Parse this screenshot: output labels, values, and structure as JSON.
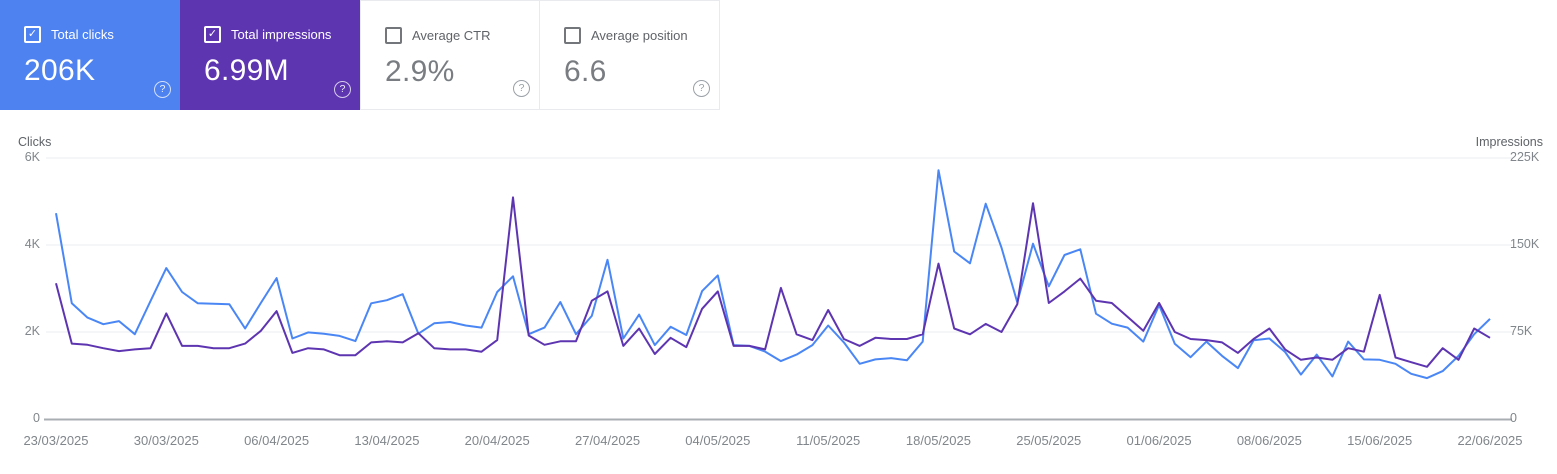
{
  "cards": [
    {
      "label": "Total clicks",
      "value": "206K",
      "checked": true,
      "accent": "#4d82f0"
    },
    {
      "label": "Total impressions",
      "value": "6.99M",
      "checked": true,
      "accent": "#5e35b1"
    },
    {
      "label": "Average CTR",
      "value": "2.9%",
      "checked": false,
      "accent": "#ffffff"
    },
    {
      "label": "Average position",
      "value": "6.6",
      "checked": false,
      "accent": "#ffffff"
    }
  ],
  "icons": {
    "checkbox_check": "✓",
    "help": "?"
  },
  "chart_data": {
    "type": "line",
    "x_start": "23/03/2025",
    "x_end": "22/06/2025",
    "cadence": "daily",
    "x_tick_labels": [
      "23/03/2025",
      "30/03/2025",
      "06/04/2025",
      "13/04/2025",
      "20/04/2025",
      "27/04/2025",
      "04/05/2025",
      "11/05/2025",
      "18/05/2025",
      "25/05/2025",
      "01/06/2025",
      "08/06/2025",
      "15/06/2025",
      "22/06/2025"
    ],
    "left_axis": {
      "title": "Clicks",
      "max": 6000,
      "tick_values": [
        6000,
        4000,
        2000,
        0
      ],
      "tick_labels": [
        "6K",
        "4K",
        "2K",
        "0"
      ]
    },
    "right_axis": {
      "title": "Impressions",
      "max": 225000,
      "tick_values": [
        225000,
        150000,
        75000,
        0
      ],
      "tick_labels": [
        "225K",
        "150K",
        "75K",
        "0"
      ]
    },
    "grid": "horizontal-only",
    "legend_position": "none",
    "series": [
      {
        "name": "Total clicks",
        "axis": "left",
        "color": "#4a87f5",
        "values": [
          4730,
          2660,
          2330,
          2180,
          2250,
          1950,
          2710,
          3470,
          2920,
          2660,
          2650,
          2640,
          2080,
          2670,
          3240,
          1850,
          1990,
          1960,
          1910,
          1790,
          2660,
          2730,
          2870,
          1960,
          2200,
          2230,
          2150,
          2100,
          2920,
          3280,
          1950,
          2100,
          2690,
          1950,
          2370,
          3660,
          1850,
          2400,
          1700,
          2120,
          1930,
          2940,
          3300,
          1700,
          1680,
          1550,
          1330,
          1480,
          1700,
          2150,
          1760,
          1270,
          1370,
          1400,
          1350,
          1780,
          5720,
          3850,
          3580,
          4950,
          3940,
          2680,
          4030,
          3050,
          3770,
          3900,
          2420,
          2190,
          2100,
          1780,
          2620,
          1730,
          1420,
          1780,
          1450,
          1170,
          1810,
          1850,
          1540,
          1020,
          1480,
          980,
          1780,
          1370,
          1360,
          1270,
          1040,
          940,
          1100,
          1450,
          1950,
          2300
        ]
      },
      {
        "name": "Total impressions",
        "axis": "right",
        "color": "#5e35b1",
        "values": [
          117000,
          65000,
          64000,
          61000,
          58500,
          60000,
          61000,
          91000,
          63000,
          63000,
          61000,
          61000,
          65000,
          76000,
          93000,
          57000,
          61000,
          60000,
          55000,
          55000,
          66000,
          67000,
          66000,
          74000,
          61000,
          60000,
          60000,
          58000,
          68000,
          191000,
          72000,
          64000,
          67000,
          67000,
          102000,
          110000,
          63000,
          78000,
          56000,
          70000,
          62000,
          95000,
          110000,
          63000,
          63000,
          60000,
          113000,
          73000,
          68000,
          94000,
          69000,
          63000,
          70000,
          69000,
          69000,
          73000,
          134000,
          78000,
          73000,
          82000,
          75000,
          99000,
          186000,
          100000,
          110000,
          121000,
          102000,
          100000,
          88000,
          76000,
          100000,
          75000,
          69000,
          68000,
          66000,
          57000,
          69000,
          78000,
          60000,
          51000,
          53000,
          51000,
          61000,
          58000,
          107000,
          53000,
          49000,
          45000,
          61000,
          51000,
          78000,
          70000
        ]
      }
    ]
  }
}
